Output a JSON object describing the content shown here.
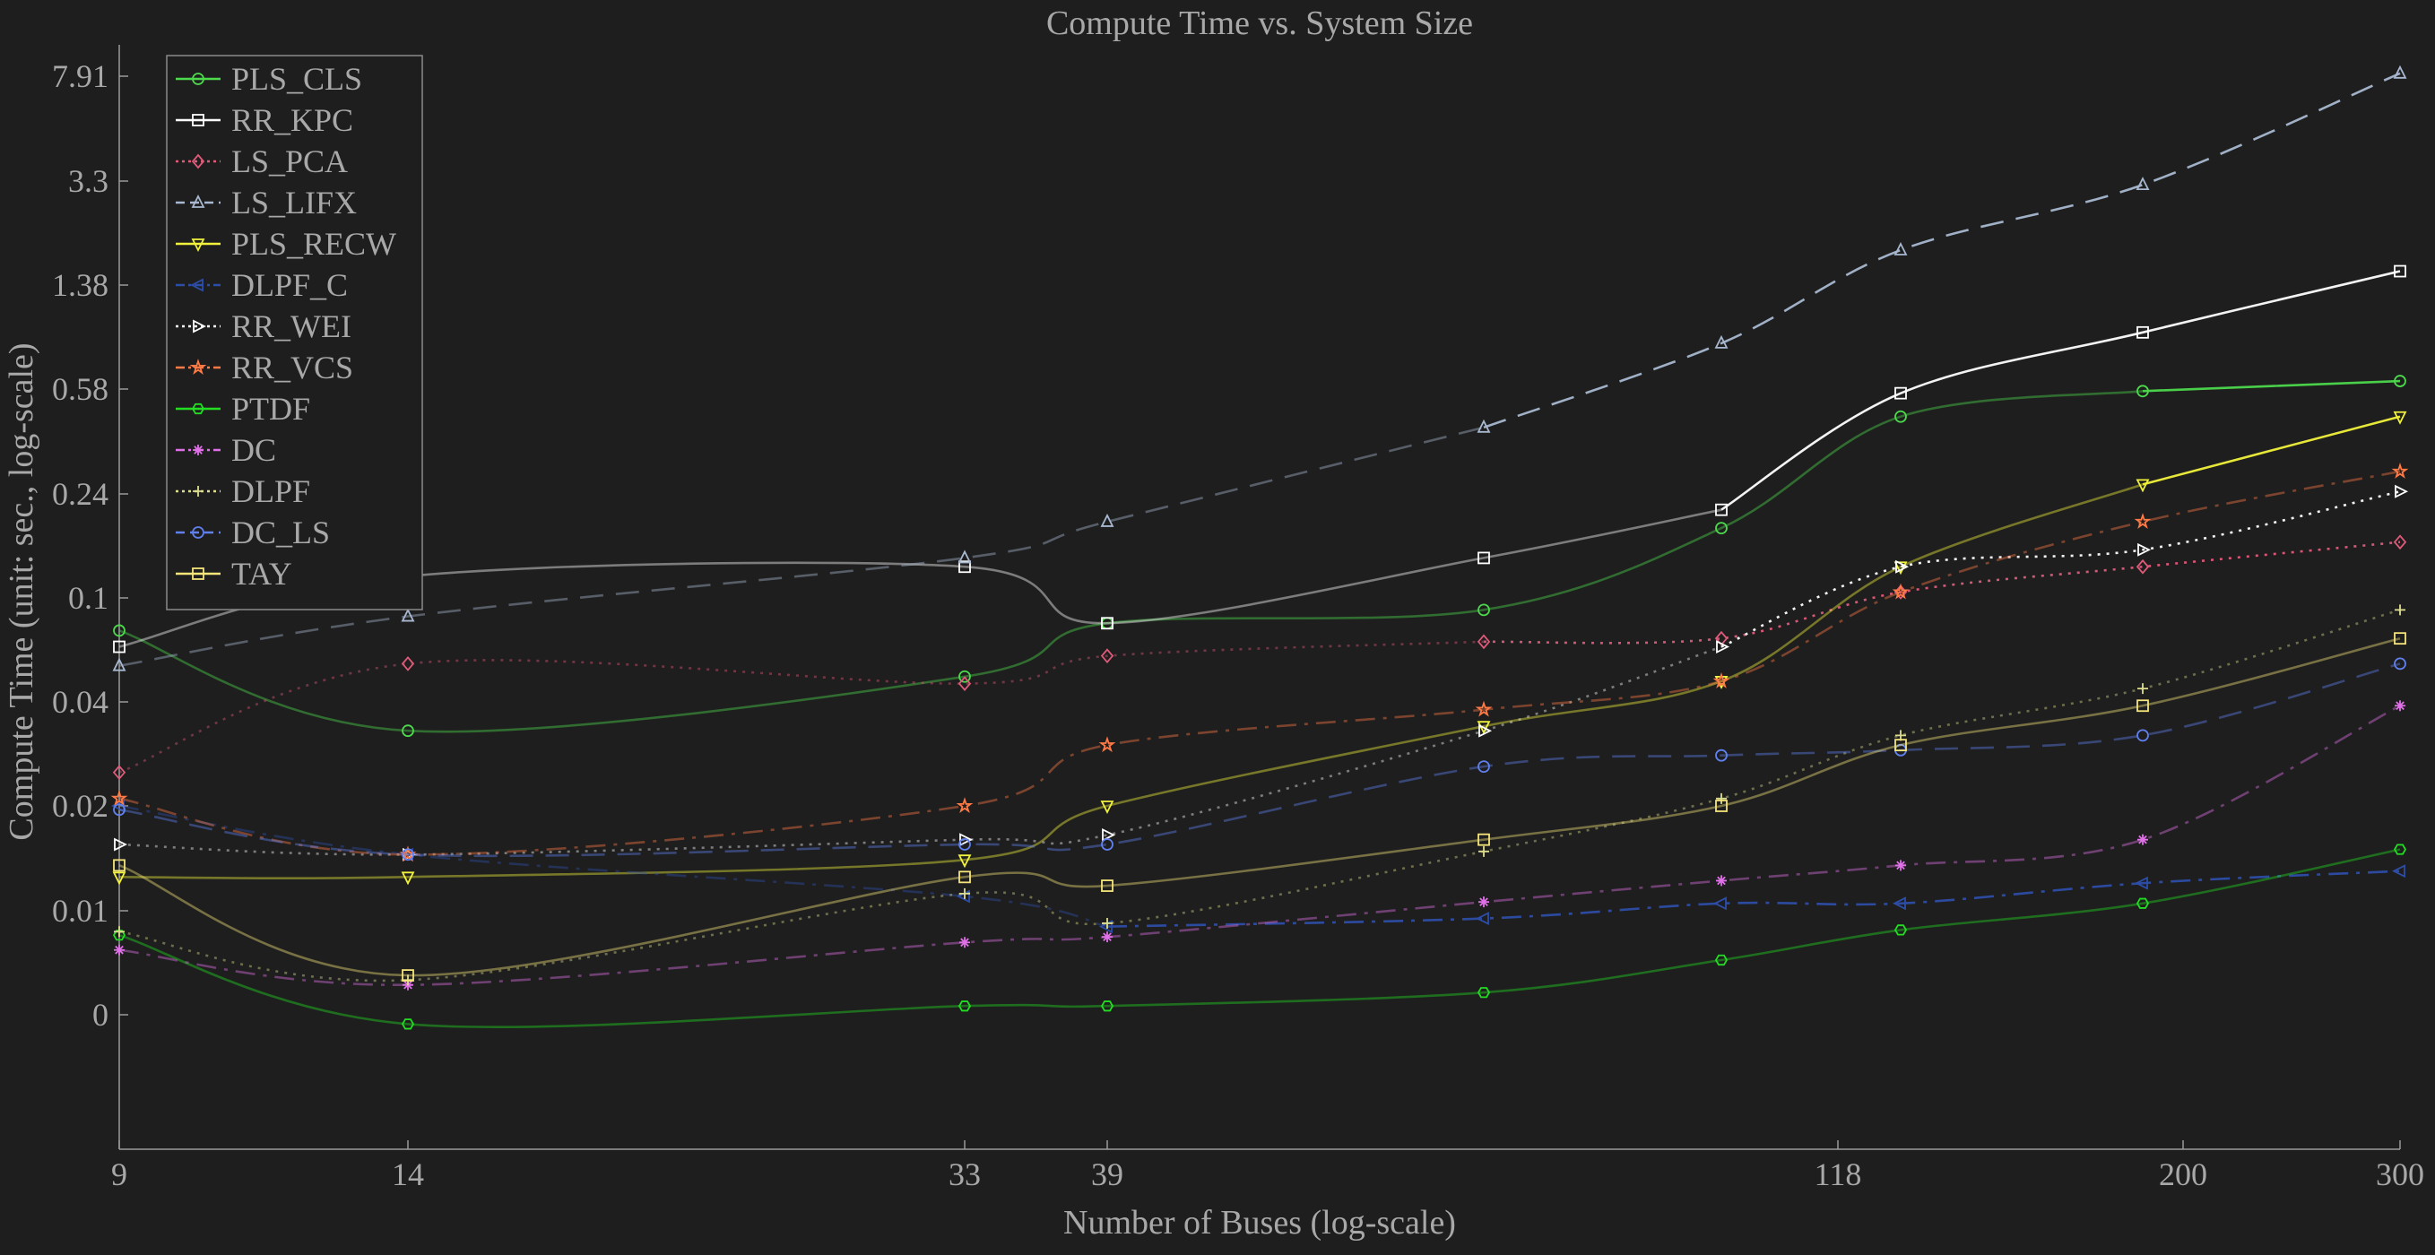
{
  "chart_data": {
    "type": "line",
    "title": "Compute Time vs. System Size",
    "xlabel": "Number of Buses (log-scale)",
    "ylabel": "Compute Time (unit: sec., log-scale)",
    "x_scale": "log",
    "y_scale": "log",
    "x_ticks": [
      "9",
      "14",
      "33",
      "39",
      "118",
      "200",
      "300"
    ],
    "y_ticks": [
      "0",
      "0.01",
      "0.02",
      "0.04",
      "0.1",
      "0.24",
      "0.58",
      "1.38",
      "3.3",
      "7.91"
    ],
    "legend_position": "top-left",
    "grid": false,
    "series": [
      {
        "name": "PLS_CLS",
        "color": "#4cd94c",
        "dash": "solid",
        "marker": "circle",
        "highlight_index": 7,
        "values": [
          0.075,
          0.033,
          0.05,
          0.08,
          0.09,
          0.18,
          0.46,
          0.57,
          0.62
        ]
      },
      {
        "name": "RR_KPC",
        "color": "#ffffff",
        "dash": "solid",
        "marker": "square",
        "highlight_index": 5,
        "values": [
          0.065,
          0.12,
          0.13,
          0.08,
          0.14,
          0.21,
          0.56,
          0.93,
          1.55
        ]
      },
      {
        "name": "LS_PCA",
        "color": "#e05a7a",
        "dash": "dotted",
        "marker": "diamond",
        "highlight_index": 4,
        "values": [
          0.025,
          0.056,
          0.047,
          0.06,
          0.068,
          0.07,
          0.105,
          0.13,
          0.16
        ]
      },
      {
        "name": "LS_LIFX",
        "color": "#a8b8d0",
        "dash": "dashed",
        "marker": "triangle-up",
        "highlight_index": 4,
        "values": [
          0.055,
          0.085,
          0.14,
          0.19,
          0.42,
          0.85,
          1.85,
          3.2,
          8.1
        ]
      },
      {
        "name": "PLS_RECW",
        "color": "#f2f23c",
        "dash": "solid",
        "marker": "triangle-down",
        "highlight_index": 7,
        "values": [
          0.0125,
          0.0125,
          0.014,
          0.02,
          0.034,
          0.048,
          0.13,
          0.26,
          0.46
        ]
      },
      {
        "name": "DLPF_C",
        "color": "#2d4ea8",
        "dash": "dashdot",
        "marker": "triangle-left",
        "highlight_index": 3,
        "values": [
          0.02,
          0.0145,
          0.011,
          0.009,
          0.0095,
          0.0105,
          0.0105,
          0.012,
          0.013
        ]
      },
      {
        "name": "RR_WEI",
        "color": "#ffffff",
        "dash": "dotted",
        "marker": "triangle-right",
        "highlight_index": 5,
        "values": [
          0.0155,
          0.0145,
          0.016,
          0.0165,
          0.033,
          0.065,
          0.13,
          0.15,
          0.245
        ]
      },
      {
        "name": "RR_VCS",
        "color": "#ff7a45",
        "dash": "dashdot",
        "marker": "star",
        "highlight_index": 8,
        "values": [
          0.021,
          0.0145,
          0.02,
          0.03,
          0.038,
          0.048,
          0.105,
          0.19,
          0.29
        ]
      },
      {
        "name": "PTDF",
        "color": "#22dd22",
        "dash": "solid",
        "marker": "hexagon",
        "highlight_index": 8,
        "values": [
          0.0085,
          0.0047,
          0.0053,
          0.0053,
          0.0058,
          0.0072,
          0.0088,
          0.0105,
          0.015
        ]
      },
      {
        "name": "DC",
        "color": "#e070e8",
        "dash": "dashdot",
        "marker": "asterisk",
        "highlight_index": 8,
        "values": [
          0.0077,
          0.0061,
          0.0081,
          0.0084,
          0.0106,
          0.0122,
          0.0135,
          0.016,
          0.039
        ]
      },
      {
        "name": "DLPF",
        "color": "#dddd90",
        "dash": "dotted",
        "marker": "plus",
        "highlight_index": 8,
        "values": [
          0.0087,
          0.0063,
          0.0112,
          0.0092,
          0.0148,
          0.021,
          0.032,
          0.045,
          0.09
        ]
      },
      {
        "name": "DC_LS",
        "color": "#6080f0",
        "dash": "dashed",
        "marker": "circle",
        "highlight_index": 8,
        "values": [
          0.0195,
          0.0145,
          0.0155,
          0.0155,
          0.026,
          0.028,
          0.029,
          0.032,
          0.056
        ]
      },
      {
        "name": "TAY",
        "color": "#f5e57a",
        "dash": "solid",
        "marker": "square",
        "highlight_index": 8,
        "values": [
          0.0135,
          0.0065,
          0.0125,
          0.0118,
          0.016,
          0.02,
          0.03,
          0.039,
          0.07
        ]
      }
    ]
  }
}
